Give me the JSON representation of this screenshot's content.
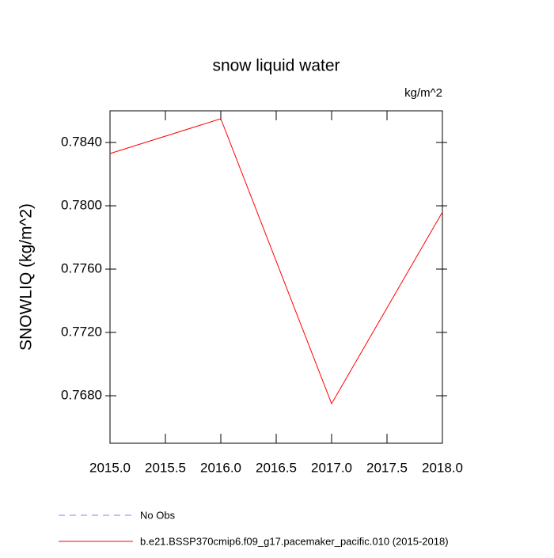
{
  "chart_data": {
    "type": "line",
    "title": "snow liquid water",
    "units_label": "kg/m^2",
    "y_label": "SNOWLIQ  (kg/m^2)",
    "x": [
      2015,
      2016,
      2017,
      2018
    ],
    "series": [
      {
        "name": "b.e21.BSSP370cmip6.f09_g17.pacemaker_pacific.010 (2015-2018)",
        "color": "#ff0000",
        "values": [
          0.7833,
          0.7855,
          0.7675,
          0.7796
        ]
      }
    ],
    "obs_legend": {
      "name": "No Obs",
      "color": "#8080ff"
    },
    "xlim": [
      2015,
      2018
    ],
    "xticks": [
      {
        "value": 2015,
        "label": "2015.0"
      },
      {
        "value": 2015.5,
        "label": "2015.5"
      },
      {
        "value": 2016,
        "label": "2016.0"
      },
      {
        "value": 2016.5,
        "label": "2016.5"
      },
      {
        "value": 2017,
        "label": "2017.0"
      },
      {
        "value": 2017.5,
        "label": "2017.5"
      },
      {
        "value": 2018,
        "label": "2018.0"
      }
    ],
    "ylim": [
      0.765,
      0.786
    ],
    "yticks": [
      {
        "value": 0.768,
        "label": "0.7680"
      },
      {
        "value": 0.772,
        "label": "0.7720"
      },
      {
        "value": 0.776,
        "label": "0.7760"
      },
      {
        "value": 0.78,
        "label": "0.7800"
      },
      {
        "value": 0.784,
        "label": "0.7840"
      }
    ]
  }
}
